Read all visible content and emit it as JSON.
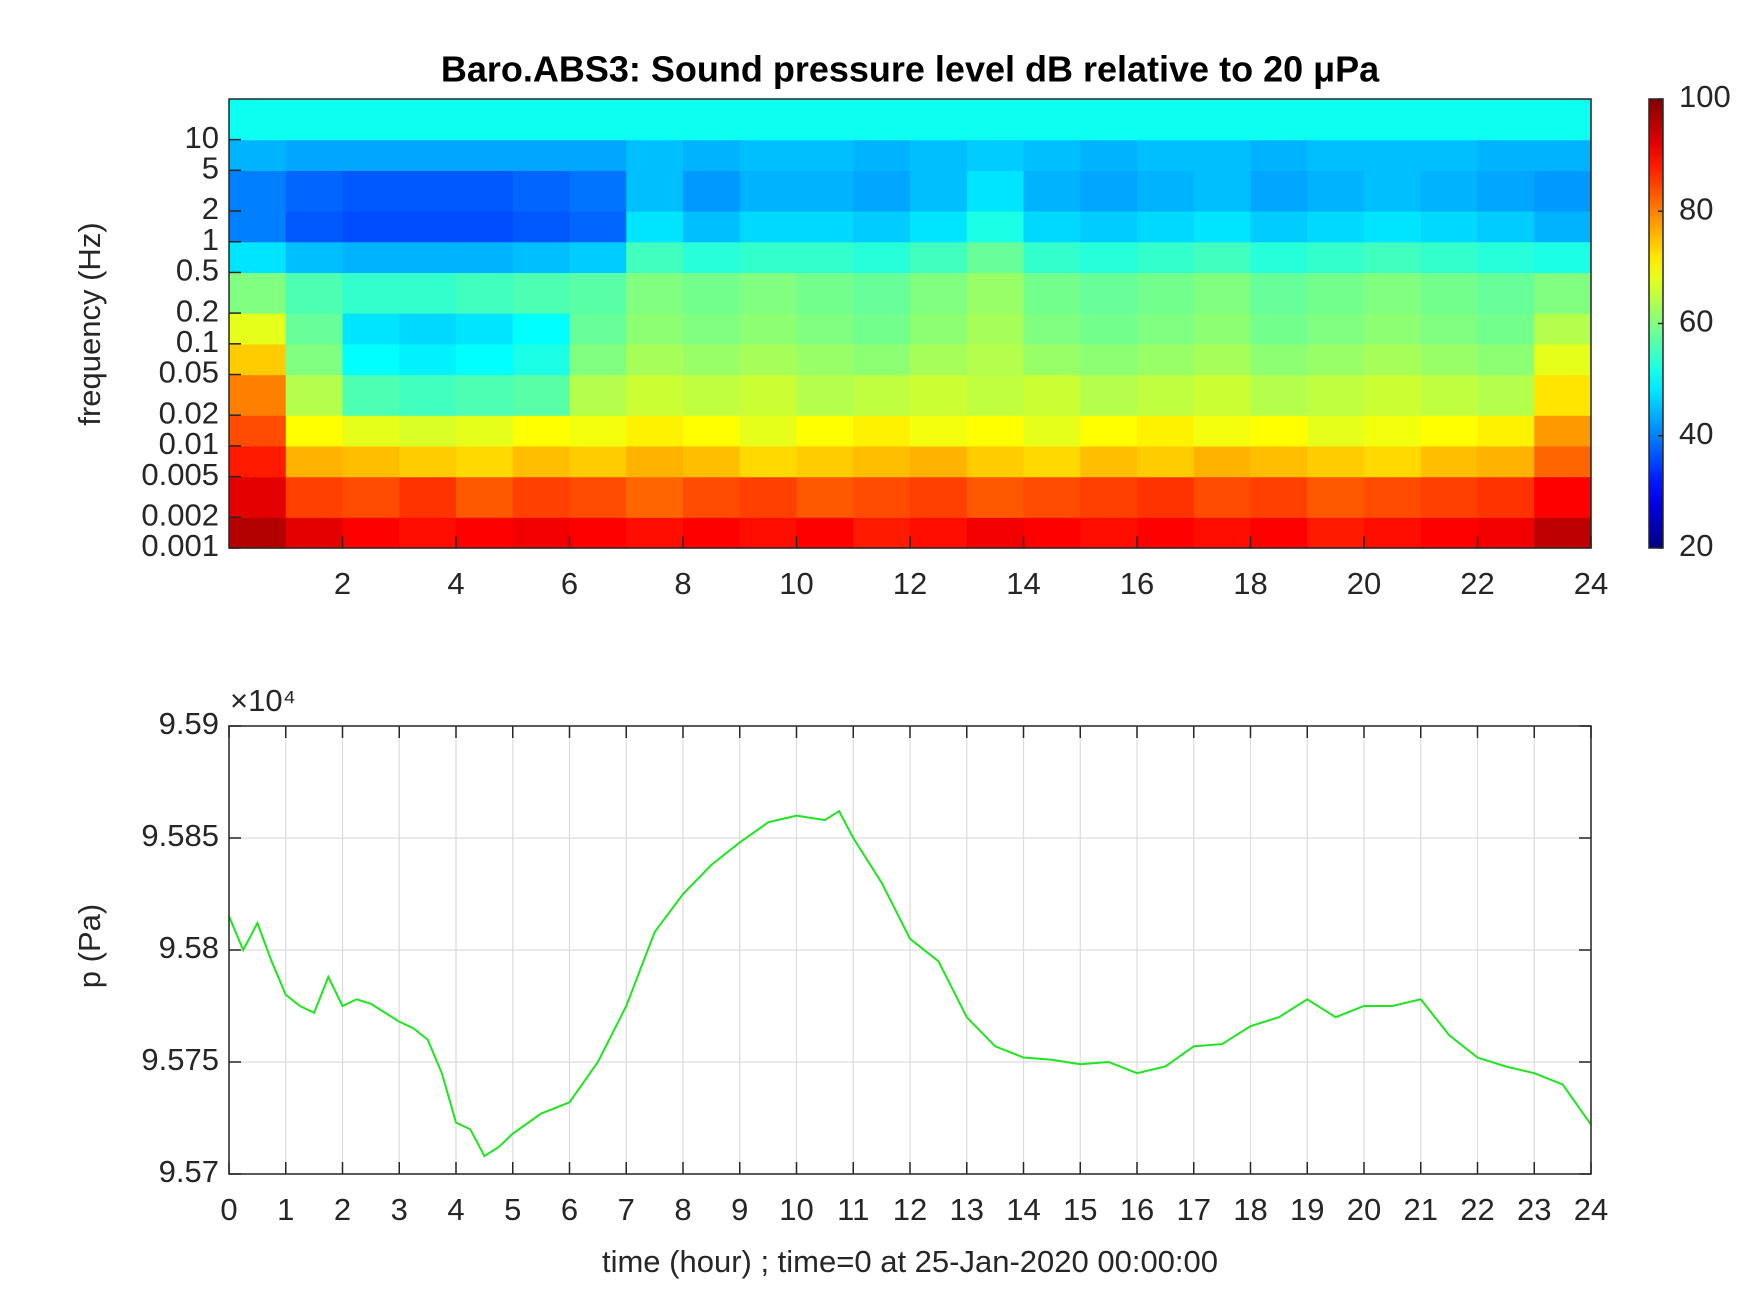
{
  "chart_data": [
    {
      "type": "heatmap",
      "title": "Baro.ABS3: Sound pressure level dB relative to 20 μPa",
      "ylabel": "frequency (Hz)",
      "log_y": true,
      "colormap": "jet",
      "time_bins": [
        0,
        1,
        2,
        3,
        4,
        5,
        6,
        7,
        8,
        9,
        10,
        11,
        12,
        13,
        14,
        15,
        16,
        17,
        18,
        19,
        20,
        21,
        22,
        23,
        24
      ],
      "frequency_bins": [
        0.001,
        0.002,
        0.005,
        0.01,
        0.02,
        0.05,
        0.1,
        0.2,
        0.5,
        1,
        2,
        5,
        10,
        25
      ],
      "values": [
        [
          96,
          92,
          90,
          89,
          90,
          91,
          90,
          89,
          90,
          89,
          90,
          88,
          89,
          91,
          90,
          89,
          90,
          89,
          90,
          88,
          89,
          90,
          91,
          95
        ],
        [
          92,
          85,
          84,
          86,
          83,
          85,
          84,
          82,
          84,
          85,
          83,
          84,
          85,
          83,
          84,
          85,
          86,
          84,
          85,
          83,
          84,
          85,
          86,
          90
        ],
        [
          88,
          76,
          75,
          74,
          73,
          75,
          74,
          76,
          75,
          73,
          74,
          75,
          76,
          74,
          73,
          75,
          74,
          76,
          75,
          74,
          73,
          75,
          76,
          82
        ],
        [
          84,
          70,
          68,
          67,
          68,
          70,
          69,
          71,
          70,
          68,
          70,
          71,
          69,
          70,
          68,
          70,
          71,
          69,
          70,
          68,
          69,
          70,
          71,
          78
        ],
        [
          80,
          64,
          56,
          55,
          56,
          57,
          64,
          66,
          65,
          66,
          64,
          65,
          66,
          65,
          66,
          64,
          65,
          66,
          64,
          65,
          66,
          65,
          64,
          72
        ],
        [
          74,
          60,
          50,
          49,
          50,
          52,
          60,
          63,
          62,
          63,
          62,
          61,
          63,
          64,
          62,
          61,
          62,
          63,
          61,
          62,
          63,
          62,
          61,
          68
        ],
        [
          68,
          58,
          48,
          47,
          48,
          50,
          58,
          61,
          60,
          61,
          60,
          59,
          61,
          63,
          60,
          59,
          60,
          61,
          59,
          60,
          61,
          60,
          59,
          64
        ],
        [
          60,
          56,
          54,
          54,
          55,
          56,
          57,
          60,
          59,
          60,
          59,
          58,
          60,
          62,
          59,
          58,
          59,
          60,
          58,
          59,
          60,
          59,
          58,
          60
        ],
        [
          48,
          45,
          44,
          44,
          44,
          45,
          46,
          55,
          53,
          54,
          54,
          53,
          55,
          58,
          54,
          53,
          54,
          55,
          53,
          54,
          55,
          54,
          53,
          52
        ],
        [
          40,
          37,
          36,
          36,
          36,
          37,
          38,
          48,
          45,
          47,
          47,
          46,
          48,
          52,
          47,
          46,
          47,
          48,
          46,
          47,
          48,
          47,
          46,
          44
        ],
        [
          40,
          38,
          37,
          37,
          37,
          38,
          39,
          45,
          42,
          44,
          44,
          43,
          45,
          48,
          44,
          43,
          44,
          45,
          43,
          44,
          45,
          44,
          43,
          42
        ],
        [
          44,
          43,
          43,
          43,
          43,
          43,
          43,
          45,
          44,
          45,
          45,
          44,
          45,
          46,
          45,
          44,
          45,
          45,
          44,
          45,
          45,
          45,
          44,
          44
        ],
        [
          51,
          51,
          51,
          51,
          51,
          51,
          51,
          51,
          51,
          51,
          51,
          51,
          51,
          51,
          51,
          51,
          51,
          51,
          51,
          51,
          51,
          51,
          51,
          51
        ]
      ],
      "xlim": [
        0,
        24
      ],
      "xticks": [
        2,
        4,
        6,
        8,
        10,
        12,
        14,
        16,
        18,
        20,
        22,
        24
      ],
      "ylim": [
        0.001,
        25
      ],
      "yticks": [
        0.001,
        0.002,
        0.005,
        0.01,
        0.02,
        0.05,
        0.1,
        0.2,
        0.5,
        1,
        2,
        5,
        10
      ],
      "clim": [
        20,
        100
      ],
      "cticks": [
        20,
        40,
        60,
        80,
        100
      ]
    },
    {
      "type": "line",
      "xlabel": "time (hour) ; time=0 at 25-Jan-2020 00:00:00",
      "ylabel": "p (Pa)",
      "y_exponent": "×10⁴",
      "grid": true,
      "series": [
        {
          "color": "#1ee61e",
          "x": [
            0,
            0.25,
            0.5,
            0.75,
            1,
            1.25,
            1.5,
            1.75,
            2,
            2.25,
            2.5,
            2.75,
            3,
            3.25,
            3.5,
            3.75,
            4,
            4.25,
            4.5,
            4.75,
            5,
            5.5,
            6,
            6.5,
            7,
            7.5,
            8,
            8.5,
            9,
            9.5,
            10,
            10.5,
            10.75,
            11,
            11.5,
            12,
            12.5,
            13,
            13.5,
            14,
            14.5,
            15,
            15.5,
            16,
            16.5,
            17,
            17.5,
            18,
            18.5,
            19,
            19.5,
            20,
            20.5,
            21,
            21.5,
            22,
            22.5,
            23,
            23.5,
            24
          ],
          "values": [
            95815,
            95800,
            95812,
            95795,
            95780,
            95775,
            95772,
            95788,
            95775,
            95778,
            95776,
            95772,
            95768,
            95765,
            95760,
            95745,
            95723,
            95720,
            95708,
            95712,
            95718,
            95727,
            95732,
            95750,
            95775,
            95808,
            95825,
            95838,
            95848,
            95857,
            95860,
            95858,
            95862,
            95850,
            95830,
            95805,
            95795,
            95770,
            95757,
            95752,
            95751,
            95749,
            95750,
            95745,
            95748,
            95757,
            95758,
            95766,
            95770,
            95778,
            95770,
            95775,
            95775,
            95778,
            95762,
            95752,
            95748,
            95745,
            95740,
            95722
          ]
        }
      ],
      "xlim": [
        0,
        24
      ],
      "xticks": [
        0,
        1,
        2,
        3,
        4,
        5,
        6,
        7,
        8,
        9,
        10,
        11,
        12,
        13,
        14,
        15,
        16,
        17,
        18,
        19,
        20,
        21,
        22,
        23,
        24
      ],
      "ylim": [
        95700,
        95900
      ],
      "yticks": [
        {
          "value": 95700,
          "label": "9.57"
        },
        {
          "value": 95750,
          "label": "9.575"
        },
        {
          "value": 95800,
          "label": "9.58"
        },
        {
          "value": 95850,
          "label": "9.585"
        },
        {
          "value": 95900,
          "label": "9.59"
        }
      ]
    }
  ]
}
